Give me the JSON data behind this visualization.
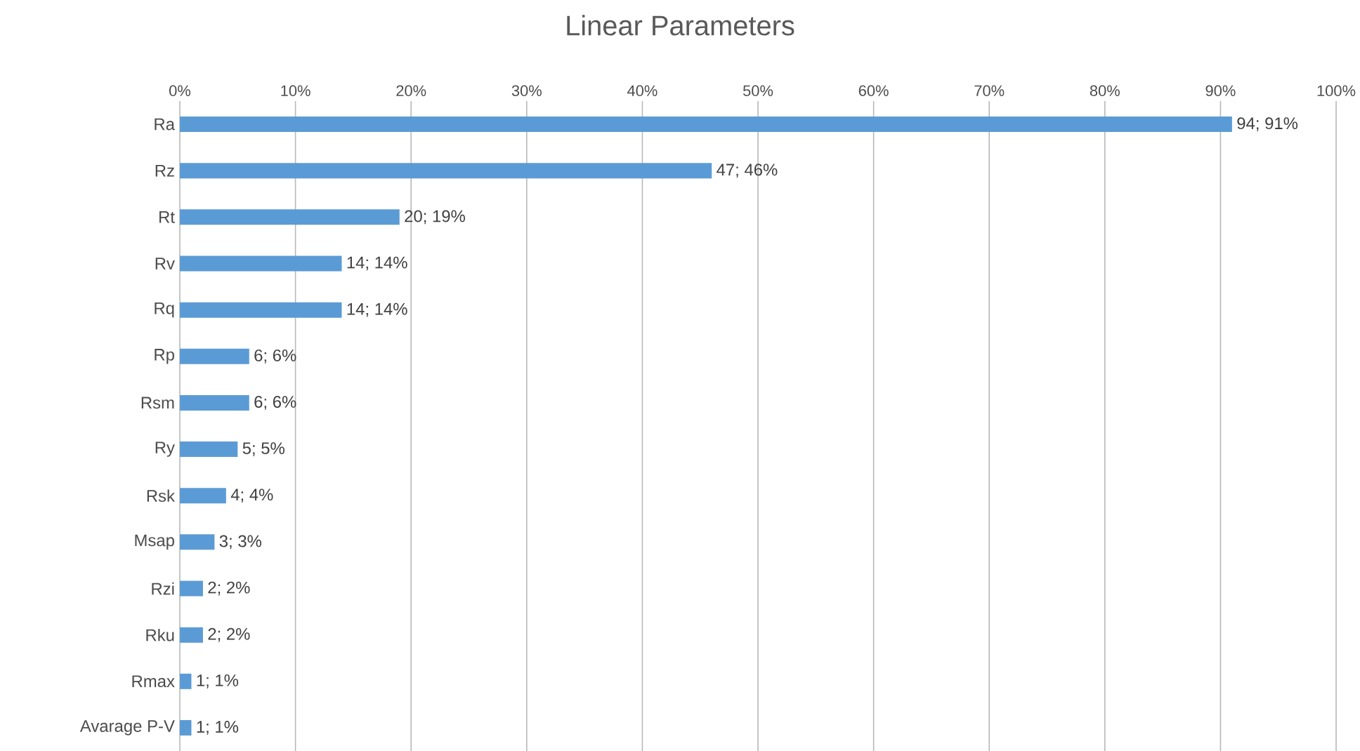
{
  "chart_data": {
    "type": "bar",
    "orientation": "horizontal",
    "title": "Linear Parameters",
    "categories": [
      "Ra",
      "Rz",
      "Rt",
      "Rv",
      "Rq",
      "Rp",
      "Rsm",
      "Ry",
      "Rsk",
      "Msap",
      "Rzi",
      "Rku",
      "Rmax",
      "Avarage P-V"
    ],
    "values": [
      91,
      46,
      19,
      14,
      14,
      6,
      6,
      5,
      4,
      3,
      2,
      2,
      1,
      1
    ],
    "value_labels": [
      "94; 91%",
      "47; 46%",
      "20; 19%",
      "14; 14%",
      "14; 14%",
      "6; 6%",
      "6; 6%",
      "5; 5%",
      "4; 4%",
      "3; 3%",
      "2; 2%",
      "2; 2%",
      "1; 1%",
      "1; 1%"
    ],
    "color": "#5b9bd5",
    "xlim": [
      0,
      100
    ],
    "xticks": [
      {
        "value": 0,
        "label": "0%"
      },
      {
        "value": 10,
        "label": "10%"
      },
      {
        "value": 20,
        "label": "20%"
      },
      {
        "value": 30,
        "label": "30%"
      },
      {
        "value": 40,
        "label": "40%"
      },
      {
        "value": 50,
        "label": "50%"
      },
      {
        "value": 60,
        "label": "60%"
      },
      {
        "value": 70,
        "label": "70%"
      },
      {
        "value": 80,
        "label": "80%"
      },
      {
        "value": 90,
        "label": "90%"
      },
      {
        "value": 100,
        "label": "100%"
      }
    ],
    "grid": "x"
  }
}
